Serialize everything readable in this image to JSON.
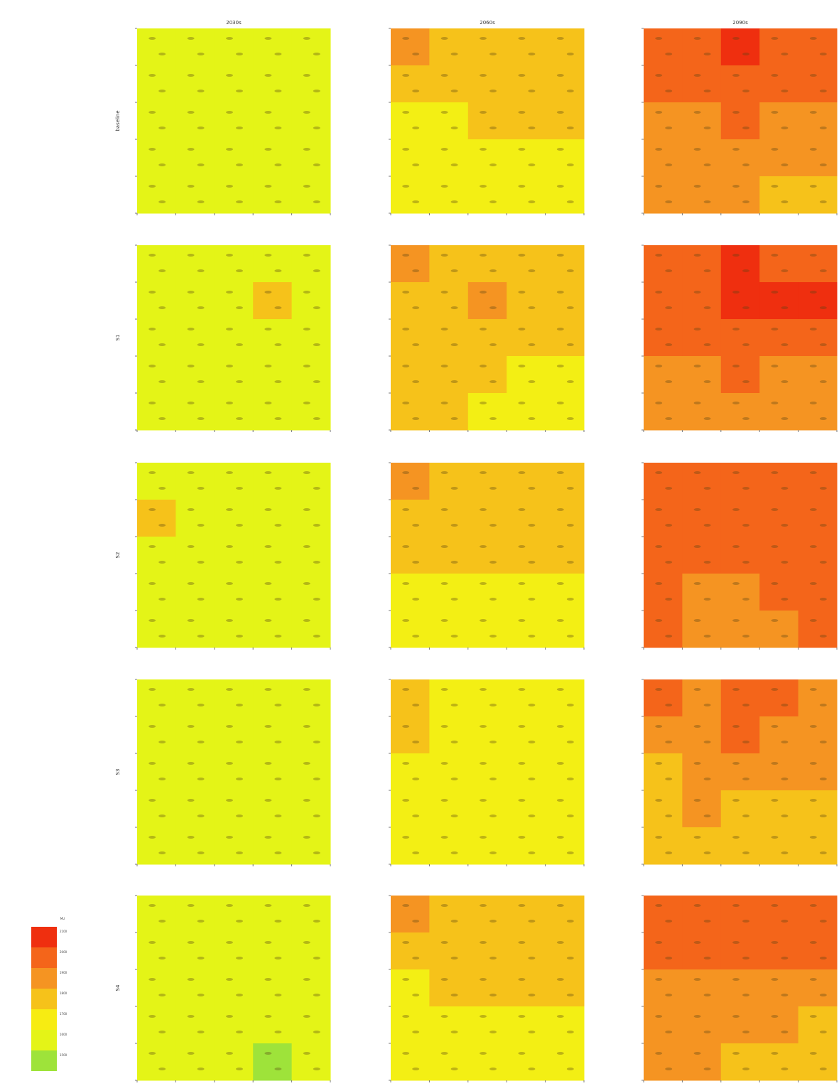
{
  "chart_data": {
    "type": "heatmap",
    "column_titles": [
      "2030s",
      "2060s",
      "2090s"
    ],
    "row_labels": [
      "baseline",
      "S1",
      "S2",
      "S3",
      "S4"
    ],
    "legend": {
      "title": "MU",
      "placement": "bottom-left",
      "tick_labels": [
        "2100",
        "2000",
        "1900",
        "1800",
        "1700",
        "1600",
        "1500"
      ],
      "colors": [
        "#ef2f0f",
        "#f4651a",
        "#f59422",
        "#f6c21a",
        "#f7ec12",
        "#e4f417",
        "#9ee33a"
      ]
    },
    "colors": {
      "lime": "#9ee33a",
      "greenyellow": "#e4f417",
      "yellow": "#f3ef14",
      "gold": "#f6c21a",
      "orange": "#f59422",
      "darkorange": "#f4651a",
      "red": "#ef2f0f"
    },
    "panels": [
      {
        "row": 0,
        "col": 0,
        "grid": [
          [
            "greenyellow",
            "greenyellow",
            "greenyellow",
            "greenyellow",
            "greenyellow"
          ],
          [
            "greenyellow",
            "greenyellow",
            "greenyellow",
            "greenyellow",
            "greenyellow"
          ],
          [
            "greenyellow",
            "greenyellow",
            "greenyellow",
            "greenyellow",
            "greenyellow"
          ],
          [
            "greenyellow",
            "greenyellow",
            "greenyellow",
            "greenyellow",
            "greenyellow"
          ],
          [
            "greenyellow",
            "greenyellow",
            "greenyellow",
            "greenyellow",
            "greenyellow"
          ]
        ]
      },
      {
        "row": 0,
        "col": 1,
        "grid": [
          [
            "orange",
            "gold",
            "gold",
            "gold",
            "gold"
          ],
          [
            "gold",
            "gold",
            "gold",
            "gold",
            "gold"
          ],
          [
            "yellow",
            "yellow",
            "gold",
            "gold",
            "gold"
          ],
          [
            "yellow",
            "yellow",
            "yellow",
            "yellow",
            "yellow"
          ],
          [
            "yellow",
            "yellow",
            "yellow",
            "yellow",
            "yellow"
          ]
        ]
      },
      {
        "row": 0,
        "col": 2,
        "grid": [
          [
            "darkorange",
            "darkorange",
            "red",
            "darkorange",
            "darkorange"
          ],
          [
            "darkorange",
            "darkorange",
            "darkorange",
            "darkorange",
            "darkorange"
          ],
          [
            "orange",
            "orange",
            "darkorange",
            "orange",
            "orange"
          ],
          [
            "orange",
            "orange",
            "orange",
            "orange",
            "orange"
          ],
          [
            "orange",
            "orange",
            "orange",
            "gold",
            "gold"
          ]
        ]
      },
      {
        "row": 1,
        "col": 0,
        "grid": [
          [
            "greenyellow",
            "greenyellow",
            "greenyellow",
            "greenyellow",
            "greenyellow"
          ],
          [
            "greenyellow",
            "greenyellow",
            "greenyellow",
            "gold",
            "greenyellow"
          ],
          [
            "greenyellow",
            "greenyellow",
            "greenyellow",
            "greenyellow",
            "greenyellow"
          ],
          [
            "greenyellow",
            "greenyellow",
            "greenyellow",
            "greenyellow",
            "greenyellow"
          ],
          [
            "greenyellow",
            "greenyellow",
            "greenyellow",
            "greenyellow",
            "greenyellow"
          ]
        ]
      },
      {
        "row": 1,
        "col": 1,
        "grid": [
          [
            "orange",
            "gold",
            "gold",
            "gold",
            "gold"
          ],
          [
            "gold",
            "gold",
            "orange",
            "gold",
            "gold"
          ],
          [
            "gold",
            "gold",
            "gold",
            "gold",
            "gold"
          ],
          [
            "gold",
            "gold",
            "gold",
            "yellow",
            "yellow"
          ],
          [
            "gold",
            "gold",
            "yellow",
            "yellow",
            "yellow"
          ]
        ]
      },
      {
        "row": 1,
        "col": 2,
        "grid": [
          [
            "darkorange",
            "darkorange",
            "red",
            "darkorange",
            "darkorange"
          ],
          [
            "darkorange",
            "darkorange",
            "red",
            "red",
            "red"
          ],
          [
            "darkorange",
            "darkorange",
            "darkorange",
            "darkorange",
            "darkorange"
          ],
          [
            "orange",
            "orange",
            "darkorange",
            "orange",
            "orange"
          ],
          [
            "orange",
            "orange",
            "orange",
            "orange",
            "orange"
          ]
        ]
      },
      {
        "row": 2,
        "col": 0,
        "grid": [
          [
            "greenyellow",
            "greenyellow",
            "greenyellow",
            "greenyellow",
            "greenyellow"
          ],
          [
            "gold",
            "greenyellow",
            "greenyellow",
            "greenyellow",
            "greenyellow"
          ],
          [
            "greenyellow",
            "greenyellow",
            "greenyellow",
            "greenyellow",
            "greenyellow"
          ],
          [
            "greenyellow",
            "greenyellow",
            "greenyellow",
            "greenyellow",
            "greenyellow"
          ],
          [
            "greenyellow",
            "greenyellow",
            "greenyellow",
            "greenyellow",
            "greenyellow"
          ]
        ]
      },
      {
        "row": 2,
        "col": 1,
        "grid": [
          [
            "orange",
            "gold",
            "gold",
            "gold",
            "gold"
          ],
          [
            "gold",
            "gold",
            "gold",
            "gold",
            "gold"
          ],
          [
            "gold",
            "gold",
            "gold",
            "gold",
            "gold"
          ],
          [
            "yellow",
            "yellow",
            "yellow",
            "yellow",
            "yellow"
          ],
          [
            "yellow",
            "yellow",
            "yellow",
            "yellow",
            "yellow"
          ]
        ]
      },
      {
        "row": 2,
        "col": 2,
        "grid": [
          [
            "darkorange",
            "darkorange",
            "darkorange",
            "darkorange",
            "darkorange"
          ],
          [
            "darkorange",
            "darkorange",
            "darkorange",
            "darkorange",
            "darkorange"
          ],
          [
            "darkorange",
            "darkorange",
            "darkorange",
            "darkorange",
            "darkorange"
          ],
          [
            "darkorange",
            "orange",
            "orange",
            "darkorange",
            "darkorange"
          ],
          [
            "darkorange",
            "orange",
            "orange",
            "orange",
            "darkorange"
          ]
        ]
      },
      {
        "row": 3,
        "col": 0,
        "grid": [
          [
            "greenyellow",
            "greenyellow",
            "greenyellow",
            "greenyellow",
            "greenyellow"
          ],
          [
            "greenyellow",
            "greenyellow",
            "greenyellow",
            "greenyellow",
            "greenyellow"
          ],
          [
            "greenyellow",
            "greenyellow",
            "greenyellow",
            "greenyellow",
            "greenyellow"
          ],
          [
            "greenyellow",
            "greenyellow",
            "greenyellow",
            "greenyellow",
            "greenyellow"
          ],
          [
            "greenyellow",
            "greenyellow",
            "greenyellow",
            "greenyellow",
            "greenyellow"
          ]
        ]
      },
      {
        "row": 3,
        "col": 1,
        "grid": [
          [
            "gold",
            "yellow",
            "yellow",
            "yellow",
            "yellow"
          ],
          [
            "gold",
            "yellow",
            "yellow",
            "yellow",
            "yellow"
          ],
          [
            "yellow",
            "yellow",
            "yellow",
            "yellow",
            "yellow"
          ],
          [
            "yellow",
            "yellow",
            "yellow",
            "yellow",
            "yellow"
          ],
          [
            "yellow",
            "yellow",
            "yellow",
            "yellow",
            "yellow"
          ]
        ]
      },
      {
        "row": 3,
        "col": 2,
        "grid": [
          [
            "darkorange",
            "orange",
            "darkorange",
            "darkorange",
            "orange"
          ],
          [
            "orange",
            "orange",
            "darkorange",
            "orange",
            "orange"
          ],
          [
            "gold",
            "orange",
            "orange",
            "orange",
            "orange"
          ],
          [
            "gold",
            "orange",
            "gold",
            "gold",
            "gold"
          ],
          [
            "gold",
            "gold",
            "gold",
            "gold",
            "gold"
          ]
        ]
      },
      {
        "row": 4,
        "col": 0,
        "grid": [
          [
            "greenyellow",
            "greenyellow",
            "greenyellow",
            "greenyellow",
            "greenyellow"
          ],
          [
            "greenyellow",
            "greenyellow",
            "greenyellow",
            "greenyellow",
            "greenyellow"
          ],
          [
            "greenyellow",
            "greenyellow",
            "greenyellow",
            "greenyellow",
            "greenyellow"
          ],
          [
            "greenyellow",
            "greenyellow",
            "greenyellow",
            "greenyellow",
            "greenyellow"
          ],
          [
            "greenyellow",
            "greenyellow",
            "greenyellow",
            "lime",
            "greenyellow"
          ]
        ]
      },
      {
        "row": 4,
        "col": 1,
        "grid": [
          [
            "orange",
            "gold",
            "gold",
            "gold",
            "gold"
          ],
          [
            "gold",
            "gold",
            "gold",
            "gold",
            "gold"
          ],
          [
            "yellow",
            "gold",
            "gold",
            "gold",
            "gold"
          ],
          [
            "yellow",
            "yellow",
            "yellow",
            "yellow",
            "yellow"
          ],
          [
            "yellow",
            "yellow",
            "yellow",
            "yellow",
            "yellow"
          ]
        ]
      },
      {
        "row": 4,
        "col": 2,
        "grid": [
          [
            "darkorange",
            "darkorange",
            "darkorange",
            "darkorange",
            "darkorange"
          ],
          [
            "darkorange",
            "darkorange",
            "darkorange",
            "darkorange",
            "darkorange"
          ],
          [
            "orange",
            "orange",
            "orange",
            "orange",
            "orange"
          ],
          [
            "orange",
            "orange",
            "orange",
            "orange",
            "gold"
          ],
          [
            "orange",
            "orange",
            "gold",
            "gold",
            "gold"
          ]
        ]
      }
    ],
    "grid": false
  }
}
